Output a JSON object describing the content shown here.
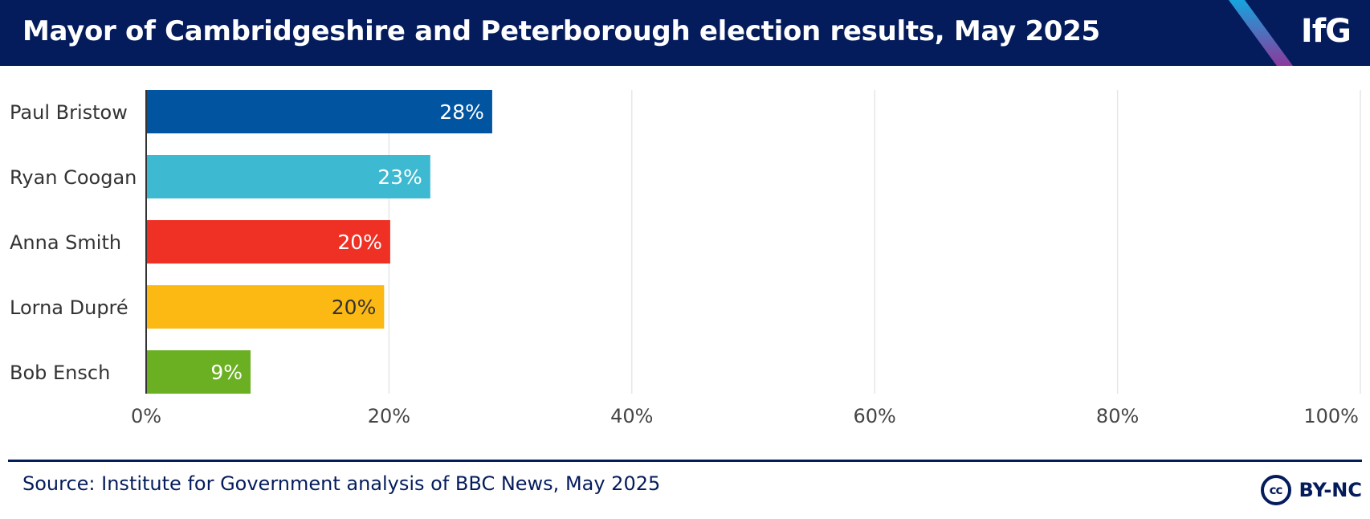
{
  "header": {
    "title": "Mayor of Cambridgeshire and Peterborough election results, May 2025",
    "logo": "IfG"
  },
  "chart_data": {
    "type": "bar",
    "orientation": "horizontal",
    "categories": [
      "Paul Bristow",
      "Ryan Coogan",
      "Anna Smith",
      "Lorna Dupré",
      "Bob Ensch"
    ],
    "values": [
      28.5,
      23.4,
      20.1,
      19.6,
      8.6
    ],
    "data_labels": [
      "28%",
      "23%",
      "20%",
      "20%",
      "9%"
    ],
    "colors": [
      "#0054a0",
      "#3db9d1",
      "#ee3124",
      "#fdb913",
      "#6bb023"
    ],
    "label_colors": [
      "#ffffff",
      "#ffffff",
      "#ffffff",
      "#333333",
      "#ffffff"
    ],
    "xlim": [
      0,
      100
    ],
    "x_ticks": [
      0,
      20,
      40,
      60,
      80,
      100
    ],
    "x_tick_labels": [
      "0%",
      "20%",
      "40%",
      "60%",
      "80%",
      "100%"
    ],
    "grid": "vertical",
    "legend": "none"
  },
  "footer": {
    "source": "Source: Institute for Government analysis of BBC News, May 2025",
    "license_icon": "cc-icon",
    "license_icon_text": "cc",
    "license": "BY-NC"
  }
}
